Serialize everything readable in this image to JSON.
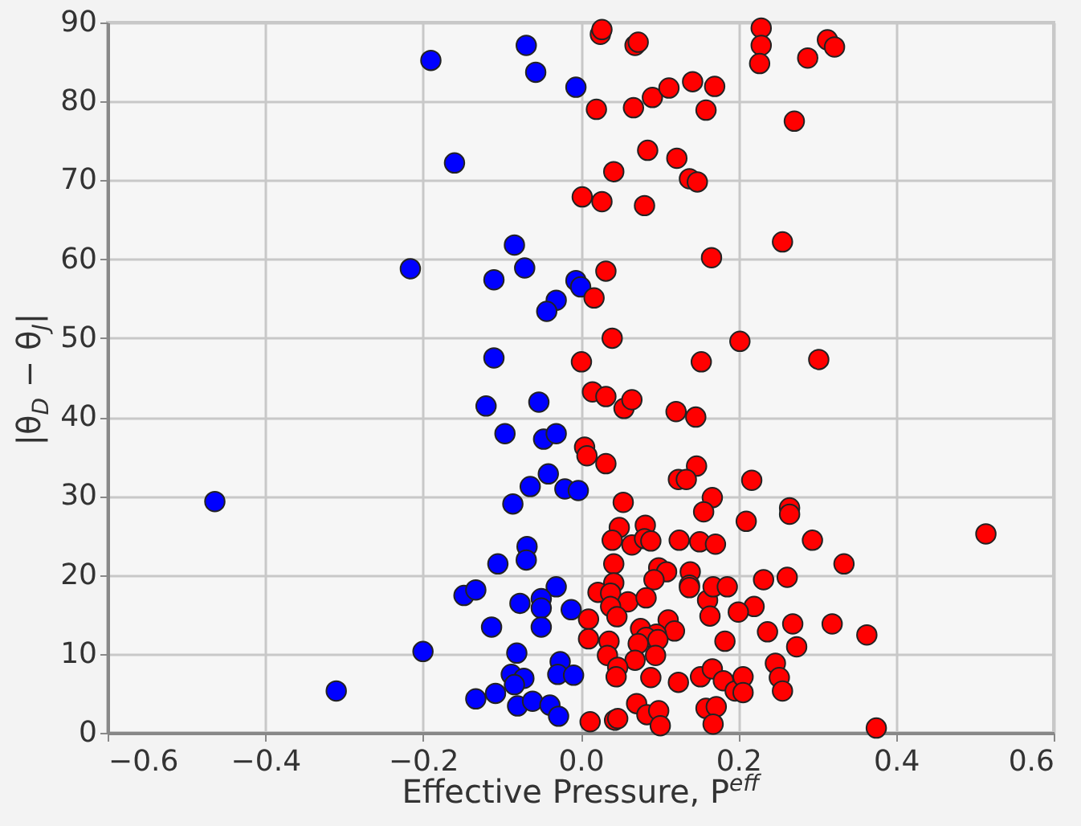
{
  "chart_data": {
    "type": "scatter",
    "xlabel": "Effective Pressure, P$^{eff}$",
    "ylabel": "|θ$_{D}$ − θ$_{J}$|",
    "xlim": [
      -0.6,
      0.6
    ],
    "xticks": [
      -0.6,
      -0.4,
      -0.2,
      {
        "value": 0,
        "label": "0.0"
      },
      0.2,
      0.4,
      0.6
    ],
    "ylim": [
      0,
      90
    ],
    "yticks": [
      0,
      10,
      20,
      30,
      40,
      50,
      60,
      70,
      80,
      90
    ],
    "grid": true,
    "marker": "circle",
    "series": [
      {
        "color": "#0000ff",
        "x": [
          -0.19,
          -0.069,
          -0.057,
          -0.006,
          -0.16,
          -0.084,
          -0.216,
          -0.11,
          -0.071,
          -0.006,
          0.0,
          -0.031,
          -0.043,
          -0.11,
          -0.12,
          -0.053,
          -0.096,
          -0.047,
          -0.031,
          -0.041,
          -0.064,
          -0.02,
          -0.003,
          -0.086,
          -0.464,
          -0.068,
          -0.069,
          -0.105,
          -0.148,
          -0.133,
          -0.031,
          -0.077,
          -0.05,
          -0.05,
          -0.012,
          -0.113,
          -0.05,
          -0.2,
          -0.081,
          -0.026,
          -0.088,
          -0.072,
          -0.084,
          -0.029,
          -0.009,
          -0.31,
          -0.133,
          -0.108,
          -0.08,
          -0.061,
          -0.039,
          -0.028
        ],
        "values": [
          85.2,
          87.1,
          83.7,
          81.8,
          72.2,
          61.8,
          58.8,
          57.4,
          58.9,
          57.3,
          56.5,
          54.8,
          53.4,
          47.5,
          41.4,
          41.9,
          37.9,
          37.2,
          37.9,
          32.8,
          31.2,
          30.9,
          30.7,
          29.0,
          29.3,
          23.6,
          21.9,
          21.4,
          17.4,
          18.1,
          18.5,
          16.4,
          17.0,
          15.8,
          15.6,
          13.4,
          13.4,
          10.3,
          10.1,
          9.0,
          7.4,
          6.9,
          6.1,
          7.4,
          7.3,
          5.3,
          4.3,
          5.0,
          3.4,
          4.0,
          3.5,
          2.1
        ]
      },
      {
        "color": "#ff0000",
        "x": [
          0.025,
          0.027,
          0.069,
          0.073,
          0.229,
          0.229,
          0.227,
          0.288,
          0.313,
          0.322,
          0.02,
          0.067,
          0.091,
          0.112,
          0.142,
          0.17,
          0.159,
          0.271,
          0.085,
          0.122,
          0.042,
          0.138,
          0.148,
          0.002,
          0.027,
          0.081,
          0.256,
          0.166,
          0.032,
          0.017,
          0.04,
          0.202,
          0.001,
          0.153,
          0.302,
          0.015,
          0.032,
          0.055,
          0.065,
          0.121,
          0.146,
          0.005,
          0.008,
          0.032,
          0.147,
          0.124,
          0.134,
          0.217,
          0.054,
          0.167,
          0.156,
          0.265,
          0.265,
          0.21,
          0.049,
          0.082,
          0.04,
          0.065,
          0.081,
          0.089,
          0.125,
          0.151,
          0.171,
          0.294,
          0.514,
          0.334,
          0.042,
          0.099,
          0.109,
          0.139,
          0.093,
          0.138,
          0.138,
          0.042,
          0.022,
          0.038,
          0.06,
          0.083,
          0.038,
          0.161,
          0.168,
          0.186,
          0.232,
          0.262,
          0.22,
          0.2,
          0.164,
          0.046,
          0.01,
          0.111,
          0.119,
          0.076,
          0.096,
          0.083,
          0.073,
          0.01,
          0.036,
          0.098,
          0.183,
          0.237,
          0.269,
          0.319,
          0.363,
          0.274,
          0.034,
          0.095,
          0.069,
          0.047,
          0.247,
          0.252,
          0.256,
          0.045,
          0.089,
          0.124,
          0.152,
          0.167,
          0.181,
          0.196,
          0.206,
          0.206,
          0.071,
          0.084,
          0.099,
          0.101,
          0.159,
          0.172,
          0.168,
          0.012,
          0.043,
          0.047,
          0.375
        ],
        "values": [
          88.5,
          89.1,
          87.1,
          87.5,
          89.3,
          87.1,
          84.8,
          85.5,
          87.8,
          86.9,
          79.0,
          79.2,
          80.5,
          81.7,
          82.5,
          81.9,
          78.9,
          77.5,
          73.8,
          72.8,
          71.1,
          70.2,
          69.8,
          67.9,
          67.3,
          66.8,
          62.2,
          60.2,
          58.5,
          55.1,
          50.0,
          49.6,
          47.0,
          47.0,
          47.3,
          43.2,
          42.6,
          41.1,
          42.2,
          40.7,
          40.0,
          36.2,
          35.1,
          34.1,
          33.8,
          32.1,
          32.1,
          32.0,
          29.2,
          29.8,
          28.0,
          28.5,
          27.7,
          26.8,
          26.0,
          26.3,
          24.4,
          23.8,
          24.6,
          24.3,
          24.4,
          24.2,
          23.9,
          24.4,
          25.2,
          21.4,
          21.4,
          20.9,
          20.4,
          20.4,
          19.4,
          18.7,
          18.4,
          19.0,
          17.8,
          17.7,
          16.6,
          17.1,
          16.0,
          16.8,
          18.5,
          18.5,
          19.4,
          19.7,
          16.0,
          15.3,
          14.8,
          14.7,
          14.4,
          14.3,
          12.9,
          13.2,
          12.5,
          12.1,
          11.3,
          11.9,
          11.6,
          11.8,
          11.6,
          12.8,
          13.8,
          13.8,
          12.4,
          10.9,
          9.8,
          9.8,
          9.2,
          8.3,
          8.8,
          7.0,
          5.3,
          7.1,
          7.0,
          6.4,
          7.1,
          8.1,
          6.6,
          5.3,
          7.1,
          5.1,
          3.7,
          2.3,
          2.8,
          0.9,
          3.1,
          3.3,
          1.1,
          1.4,
          1.6,
          1.8,
          0.6
        ]
      }
    ]
  }
}
